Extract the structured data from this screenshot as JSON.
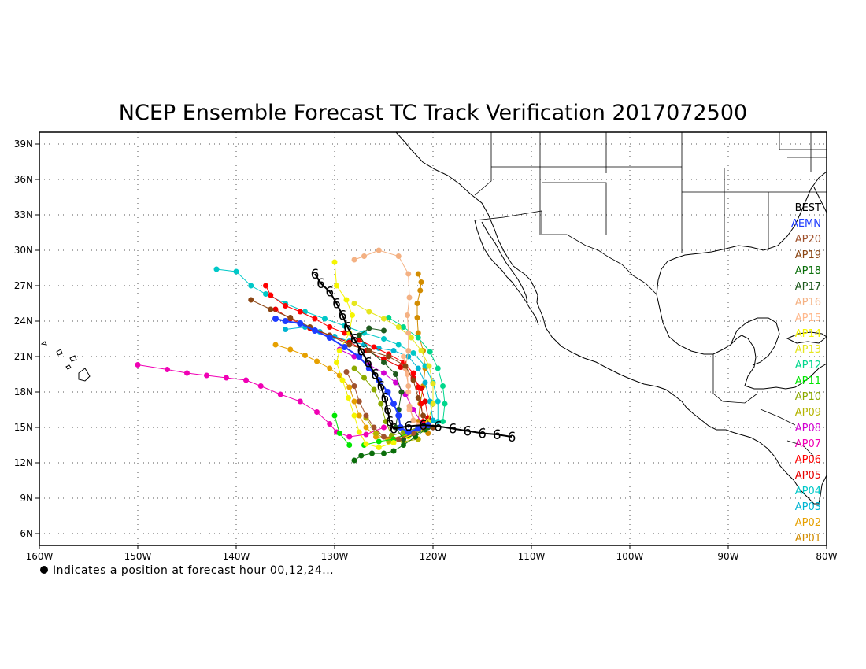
{
  "title": "NCEP Ensemble Forecast TC Track Verification 2017072500",
  "footnote": "Indicates a position at forecast hour 00,12,24...",
  "x_ticks": [
    "160W",
    "150W",
    "140W",
    "130W",
    "120W",
    "110W",
    "100W",
    "90W",
    "80W"
  ],
  "y_ticks": [
    "39N",
    "36N",
    "33N",
    "30N",
    "27N",
    "24N",
    "21N",
    "18N",
    "15N",
    "12N",
    "9N",
    "6N"
  ],
  "legend": [
    {
      "label": "BEST",
      "color": "#000000"
    },
    {
      "label": "AEMN",
      "color": "#1e3cff"
    },
    {
      "label": "AP20",
      "color": "#a0522d"
    },
    {
      "label": "AP19",
      "color": "#8b4513"
    },
    {
      "label": "AP18",
      "color": "#0a6e0a"
    },
    {
      "label": "AP17",
      "color": "#1e5a1e"
    },
    {
      "label": "AP16",
      "color": "#f4b183"
    },
    {
      "label": "AP15",
      "color": "#ffb88c"
    },
    {
      "label": "AP14",
      "color": "#f5f500"
    },
    {
      "label": "AP13",
      "color": "#e6e61e"
    },
    {
      "label": "AP12",
      "color": "#00d78c"
    },
    {
      "label": "AP11",
      "color": "#00e600"
    },
    {
      "label": "AP10",
      "color": "#8caa00"
    },
    {
      "label": "AP09",
      "color": "#b4b400"
    },
    {
      "label": "AP08",
      "color": "#d200d2"
    },
    {
      "label": "AP07",
      "color": "#f000b4"
    },
    {
      "label": "AP06",
      "color": "#ff0000"
    },
    {
      "label": "AP05",
      "color": "#e60000"
    },
    {
      "label": "AP04",
      "color": "#00c8c8"
    },
    {
      "label": "AP03",
      "color": "#00b4d2"
    },
    {
      "label": "AP02",
      "color": "#e6a000"
    },
    {
      "label": "AP01",
      "color": "#d28c00"
    }
  ],
  "chart_data": {
    "type": "scatter",
    "title": "NCEP Ensemble Forecast TC Track Verification 2017072500",
    "xlim": [
      -160,
      -80
    ],
    "ylim": [
      5,
      40
    ],
    "grid": true,
    "legend_position": "right",
    "series": [
      {
        "name": "BEST",
        "color": "#000000",
        "points": [
          [
            -112,
            14.2
          ],
          [
            -113.5,
            14.4
          ],
          [
            -115,
            14.5
          ],
          [
            -116.5,
            14.7
          ],
          [
            -118,
            14.9
          ],
          [
            -119.5,
            15.1
          ],
          [
            -121,
            15.2
          ],
          [
            -122.5,
            15.1
          ],
          [
            -124,
            14.9
          ],
          [
            -124.4,
            15.5
          ],
          [
            -124.6,
            16.5
          ],
          [
            -124.9,
            17.5
          ],
          [
            -125.3,
            18.5
          ],
          [
            -125.9,
            19.5
          ],
          [
            -126.6,
            20.5
          ],
          [
            -127.3,
            21.5
          ],
          [
            -128,
            22.5
          ],
          [
            -128.7,
            23.5
          ],
          [
            -129.2,
            24.5
          ],
          [
            -129.8,
            25.5
          ],
          [
            -130.5,
            26.5
          ],
          [
            -131.4,
            27.2
          ],
          [
            -132,
            28
          ]
        ]
      },
      {
        "name": "AEMN",
        "color": "#1e3cff",
        "points": [
          [
            -120.5,
            15.2
          ],
          [
            -121.5,
            14.9
          ],
          [
            -122.5,
            14.6
          ],
          [
            -123.3,
            15
          ],
          [
            -123.5,
            16
          ],
          [
            -124,
            17
          ],
          [
            -124.6,
            18
          ],
          [
            -125.5,
            19
          ],
          [
            -126.5,
            20
          ],
          [
            -127.5,
            21
          ],
          [
            -129,
            21.8
          ],
          [
            -130.5,
            22.6
          ],
          [
            -132,
            23.2
          ],
          [
            -133.5,
            23.8
          ],
          [
            -135,
            24
          ],
          [
            -136,
            24.2
          ]
        ]
      },
      {
        "name": "AP20",
        "color": "#a0522d",
        "points": [
          [
            -121,
            15
          ],
          [
            -122,
            14.5
          ],
          [
            -123.5,
            14
          ],
          [
            -125,
            14.2
          ],
          [
            -126,
            15
          ],
          [
            -126.8,
            16
          ],
          [
            -127.5,
            17.2
          ],
          [
            -128,
            18.5
          ],
          [
            -128.8,
            19.7
          ]
        ]
      },
      {
        "name": "AP19",
        "color": "#8b4513",
        "points": [
          [
            -120,
            15
          ],
          [
            -121,
            16
          ],
          [
            -121.5,
            17.5
          ],
          [
            -122,
            19
          ],
          [
            -122.8,
            20.2
          ],
          [
            -124.5,
            21
          ],
          [
            -126.5,
            21.5
          ],
          [
            -128.5,
            22
          ],
          [
            -130.5,
            22.8
          ],
          [
            -132.5,
            23.5
          ],
          [
            -134.5,
            24.3
          ],
          [
            -136.5,
            25
          ],
          [
            -138.5,
            25.8
          ]
        ]
      },
      {
        "name": "AP18",
        "color": "#0a6e0a",
        "points": [
          [
            -120.8,
            14.8
          ],
          [
            -121.8,
            14.2
          ],
          [
            -123,
            13.5
          ],
          [
            -124,
            13
          ],
          [
            -125,
            12.8
          ],
          [
            -126.2,
            12.8
          ],
          [
            -127.3,
            12.6
          ],
          [
            -128,
            12.2
          ]
        ]
      },
      {
        "name": "AP17",
        "color": "#1e5a1e",
        "points": [
          [
            -120.5,
            15
          ],
          [
            -121.8,
            14.4
          ],
          [
            -123,
            14
          ],
          [
            -123.8,
            15
          ],
          [
            -123.5,
            16.5
          ],
          [
            -123.2,
            18
          ],
          [
            -123.8,
            19.5
          ],
          [
            -125,
            20.5
          ],
          [
            -126.5,
            21.5
          ],
          [
            -127.5,
            22.8
          ],
          [
            -126.5,
            23.4
          ],
          [
            -125,
            23.2
          ]
        ]
      },
      {
        "name": "AP16",
        "color": "#f4b183",
        "points": [
          [
            -121,
            15.1
          ],
          [
            -122,
            15.6
          ],
          [
            -122.4,
            16.8
          ],
          [
            -122.5,
            18.5
          ],
          [
            -122.8,
            20
          ],
          [
            -122.5,
            21.5
          ],
          [
            -122.5,
            23
          ],
          [
            -122.6,
            24.5
          ],
          [
            -122.4,
            26
          ],
          [
            -122.5,
            28
          ],
          [
            -123.5,
            29.5
          ],
          [
            -125.5,
            30
          ],
          [
            -127,
            29.5
          ],
          [
            -128,
            29.2
          ]
        ]
      },
      {
        "name": "AP15",
        "color": "#ffb88c",
        "points": [
          [
            -121.5,
            15.2
          ],
          [
            -122.4,
            16.5
          ],
          [
            -122.5,
            18
          ],
          [
            -122.6,
            19.5
          ],
          [
            -123,
            21
          ]
        ]
      },
      {
        "name": "AP14",
        "color": "#f5f500",
        "points": [
          [
            -121,
            14.8
          ],
          [
            -122.5,
            14.2
          ],
          [
            -124,
            13.7
          ],
          [
            -125.5,
            13.3
          ],
          [
            -126.8,
            13.6
          ],
          [
            -127.5,
            14.6
          ],
          [
            -128,
            16
          ],
          [
            -128.6,
            17.5
          ],
          [
            -129.2,
            19
          ],
          [
            -129.8,
            20.5
          ],
          [
            -129.5,
            21.5
          ],
          [
            -128.5,
            23
          ],
          [
            -128.2,
            24.5
          ],
          [
            -128.8,
            25.8
          ],
          [
            -129.8,
            27
          ],
          [
            -130,
            29
          ]
        ]
      },
      {
        "name": "AP13",
        "color": "#e6e61e",
        "points": [
          [
            -120.5,
            15.5
          ],
          [
            -120,
            17
          ],
          [
            -120,
            18.7
          ],
          [
            -120.4,
            20.2
          ],
          [
            -121.2,
            21.5
          ],
          [
            -122.2,
            22.6
          ],
          [
            -123.5,
            23.5
          ],
          [
            -125,
            24.2
          ],
          [
            -126.5,
            24.8
          ],
          [
            -128,
            25.5
          ]
        ]
      },
      {
        "name": "AP12",
        "color": "#00d78c",
        "points": [
          [
            -119,
            15.5
          ],
          [
            -118.8,
            17
          ],
          [
            -119,
            18.5
          ],
          [
            -119.5,
            20
          ],
          [
            -120.3,
            21.4
          ],
          [
            -121.5,
            22.6
          ],
          [
            -123,
            23.5
          ],
          [
            -124.5,
            24.3
          ]
        ]
      },
      {
        "name": "AP11",
        "color": "#00e600",
        "points": [
          [
            -121,
            15
          ],
          [
            -122.5,
            14.5
          ],
          [
            -124,
            14
          ],
          [
            -125.5,
            13.8
          ],
          [
            -127,
            13.5
          ],
          [
            -128.5,
            13.5
          ],
          [
            -129.5,
            14.5
          ],
          [
            -130,
            16
          ]
        ]
      },
      {
        "name": "AP10",
        "color": "#8caa00",
        "points": [
          [
            -121.5,
            15
          ],
          [
            -123,
            14.6
          ],
          [
            -124.2,
            14.3
          ],
          [
            -124.8,
            15.5
          ],
          [
            -125.3,
            17
          ],
          [
            -126,
            18.2
          ],
          [
            -127,
            19.2
          ],
          [
            -128,
            20
          ]
        ]
      },
      {
        "name": "AP09",
        "color": "#b4b400",
        "points": [
          [
            -121.5,
            14
          ],
          [
            -123,
            13.8
          ],
          [
            -124.5,
            13.8
          ],
          [
            -125.8,
            14.5
          ],
          [
            -126.8,
            15.8
          ]
        ]
      },
      {
        "name": "AP08",
        "color": "#d200d2",
        "points": [
          [
            -121,
            15.2
          ],
          [
            -122,
            16.5
          ],
          [
            -122.8,
            17.8
          ],
          [
            -123.8,
            18.8
          ],
          [
            -125,
            19.6
          ],
          [
            -126.5,
            20.3
          ],
          [
            -128,
            21
          ],
          [
            -129.5,
            21.6
          ]
        ]
      },
      {
        "name": "AP07",
        "color": "#f000b4",
        "points": [
          [
            -125,
            15
          ],
          [
            -126.8,
            14.4
          ],
          [
            -128.5,
            14.2
          ],
          [
            -129.8,
            14.6
          ],
          [
            -130.5,
            15.3
          ],
          [
            -131.8,
            16.3
          ],
          [
            -133.5,
            17.2
          ],
          [
            -135.5,
            17.8
          ],
          [
            -137.5,
            18.5
          ],
          [
            -139,
            19
          ],
          [
            -141,
            19.2
          ],
          [
            -143,
            19.4
          ],
          [
            -145,
            19.6
          ],
          [
            -147,
            19.9
          ],
          [
            -150,
            20.3
          ]
        ]
      },
      {
        "name": "AP06",
        "color": "#ff0000",
        "points": [
          [
            -121,
            15.5
          ],
          [
            -121.2,
            17
          ],
          [
            -121.5,
            18.4
          ],
          [
            -122,
            19.6
          ],
          [
            -123,
            20.5
          ],
          [
            -124.5,
            21.2
          ],
          [
            -126,
            21.8
          ],
          [
            -127.5,
            22.4
          ],
          [
            -129,
            23
          ],
          [
            -130.5,
            23.5
          ],
          [
            -132,
            24.2
          ],
          [
            -133.5,
            24.8
          ],
          [
            -135,
            25.3
          ],
          [
            -136.5,
            26.2
          ],
          [
            -137,
            27
          ]
        ]
      },
      {
        "name": "AP05",
        "color": "#e60000",
        "points": [
          [
            -120.5,
            15.8
          ],
          [
            -120.8,
            17.2
          ],
          [
            -121.2,
            18.3
          ],
          [
            -122,
            19.2
          ],
          [
            -123.3,
            20.1
          ],
          [
            -125,
            20.8
          ],
          [
            -126.8,
            21.5
          ],
          [
            -128.5,
            22.2
          ],
          [
            -130.5,
            22.8
          ],
          [
            -132.5,
            23.4
          ],
          [
            -134.5,
            24.2
          ],
          [
            -136,
            25
          ]
        ]
      },
      {
        "name": "AP04",
        "color": "#00c8c8",
        "points": [
          [
            -119.5,
            15.5
          ],
          [
            -119.5,
            17.2
          ],
          [
            -120,
            18.8
          ],
          [
            -120.8,
            20.2
          ],
          [
            -122,
            21.3
          ],
          [
            -123.5,
            22
          ],
          [
            -125,
            22.5
          ],
          [
            -127,
            23
          ],
          [
            -129,
            23.6
          ],
          [
            -131,
            24.2
          ],
          [
            -133,
            24.8
          ],
          [
            -135,
            25.5
          ],
          [
            -137,
            26.3
          ],
          [
            -138.5,
            27
          ],
          [
            -140,
            28.2
          ],
          [
            -142,
            28.4
          ]
        ]
      },
      {
        "name": "AP03",
        "color": "#00b4d2",
        "points": [
          [
            -120,
            15.6
          ],
          [
            -120.3,
            17.2
          ],
          [
            -120.8,
            18.8
          ],
          [
            -121.5,
            20
          ],
          [
            -122.5,
            21
          ],
          [
            -124,
            21.5
          ],
          [
            -125.5,
            21.7
          ],
          [
            -127,
            22
          ],
          [
            -128.5,
            22.3
          ],
          [
            -130,
            22.7
          ],
          [
            -131.5,
            23.1
          ],
          [
            -133,
            23.5
          ],
          [
            -135,
            23.3
          ]
        ]
      },
      {
        "name": "AP02",
        "color": "#e6a000",
        "points": [
          [
            -121.5,
            14.8
          ],
          [
            -123,
            14.3
          ],
          [
            -124.5,
            14
          ],
          [
            -125.8,
            14.2
          ],
          [
            -126.8,
            15
          ],
          [
            -127.5,
            16
          ],
          [
            -128,
            17.2
          ],
          [
            -128.5,
            18.4
          ],
          [
            -129.5,
            19.4
          ],
          [
            -130.5,
            20
          ],
          [
            -131.8,
            20.6
          ],
          [
            -133,
            21.1
          ],
          [
            -134.5,
            21.6
          ],
          [
            -136,
            22
          ]
        ]
      },
      {
        "name": "AP01",
        "color": "#d28c00",
        "points": [
          [
            -120.5,
            14.5
          ],
          [
            -121.5,
            15.5
          ],
          [
            -121.3,
            17
          ],
          [
            -121,
            18.5
          ],
          [
            -120.8,
            20
          ],
          [
            -121,
            21.5
          ],
          [
            -121.5,
            23
          ],
          [
            -121.6,
            24.3
          ],
          [
            -121.6,
            25.5
          ],
          [
            -121.3,
            26.6
          ],
          [
            -121.2,
            27.3
          ],
          [
            -121.5,
            28
          ]
        ]
      }
    ]
  }
}
